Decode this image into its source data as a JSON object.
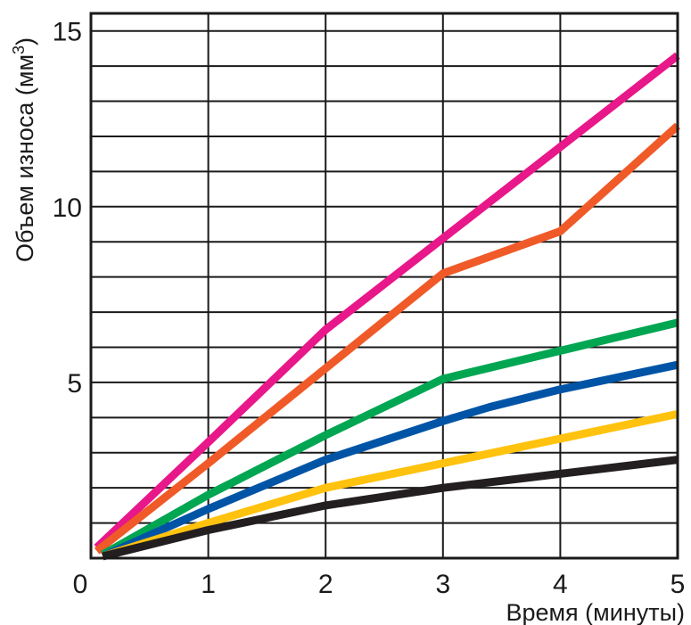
{
  "chart_data": {
    "type": "line",
    "title": "",
    "xlabel": "Время (минуты)",
    "ylabel": "Объем износа (мм³)",
    "ylabel_main": "Объем износа (мм",
    "ylabel_sup": "3",
    "ylabel_close": ")",
    "xlim": [
      0,
      5
    ],
    "ylim": [
      0,
      15.5
    ],
    "origin_label": "0",
    "xticks": [
      "1",
      "2",
      "3",
      "4",
      "5"
    ],
    "yticks": [
      "5",
      "10",
      "15"
    ],
    "grid": true,
    "legend": "none",
    "series": [
      {
        "color": "#e8178a",
        "points": [
          [
            0.05,
            0.3
          ],
          [
            1,
            3.3
          ],
          [
            2,
            6.5
          ],
          [
            3,
            9.1
          ],
          [
            4,
            11.7
          ],
          [
            5,
            14.3
          ]
        ]
      },
      {
        "color": "#f05a28",
        "points": [
          [
            0.05,
            0.2
          ],
          [
            1,
            2.7
          ],
          [
            2,
            5.4
          ],
          [
            3,
            8.1
          ],
          [
            4,
            9.3
          ],
          [
            5,
            12.3
          ]
        ]
      },
      {
        "color": "#00a651",
        "points": [
          [
            0.1,
            0.1
          ],
          [
            1,
            1.8
          ],
          [
            2,
            3.5
          ],
          [
            3,
            5.1
          ],
          [
            4,
            5.9
          ],
          [
            5,
            6.7
          ]
        ]
      },
      {
        "color": "#0054a6",
        "points": [
          [
            0.1,
            0.05
          ],
          [
            1,
            1.4
          ],
          [
            2,
            2.8
          ],
          [
            3,
            3.9
          ],
          [
            3.4,
            4.3
          ],
          [
            4,
            4.8
          ],
          [
            5,
            5.5
          ]
        ]
      },
      {
        "color": "#ffc20e",
        "points": [
          [
            0.1,
            0.05
          ],
          [
            1,
            1.0
          ],
          [
            2,
            2.0
          ],
          [
            3,
            2.7
          ],
          [
            4,
            3.4
          ],
          [
            5,
            4.1
          ]
        ]
      },
      {
        "color": "#231f20",
        "points": [
          [
            0.1,
            0.05
          ],
          [
            1,
            0.8
          ],
          [
            2,
            1.5
          ],
          [
            3,
            2.0
          ],
          [
            4,
            2.4
          ],
          [
            5,
            2.8
          ]
        ]
      }
    ]
  }
}
